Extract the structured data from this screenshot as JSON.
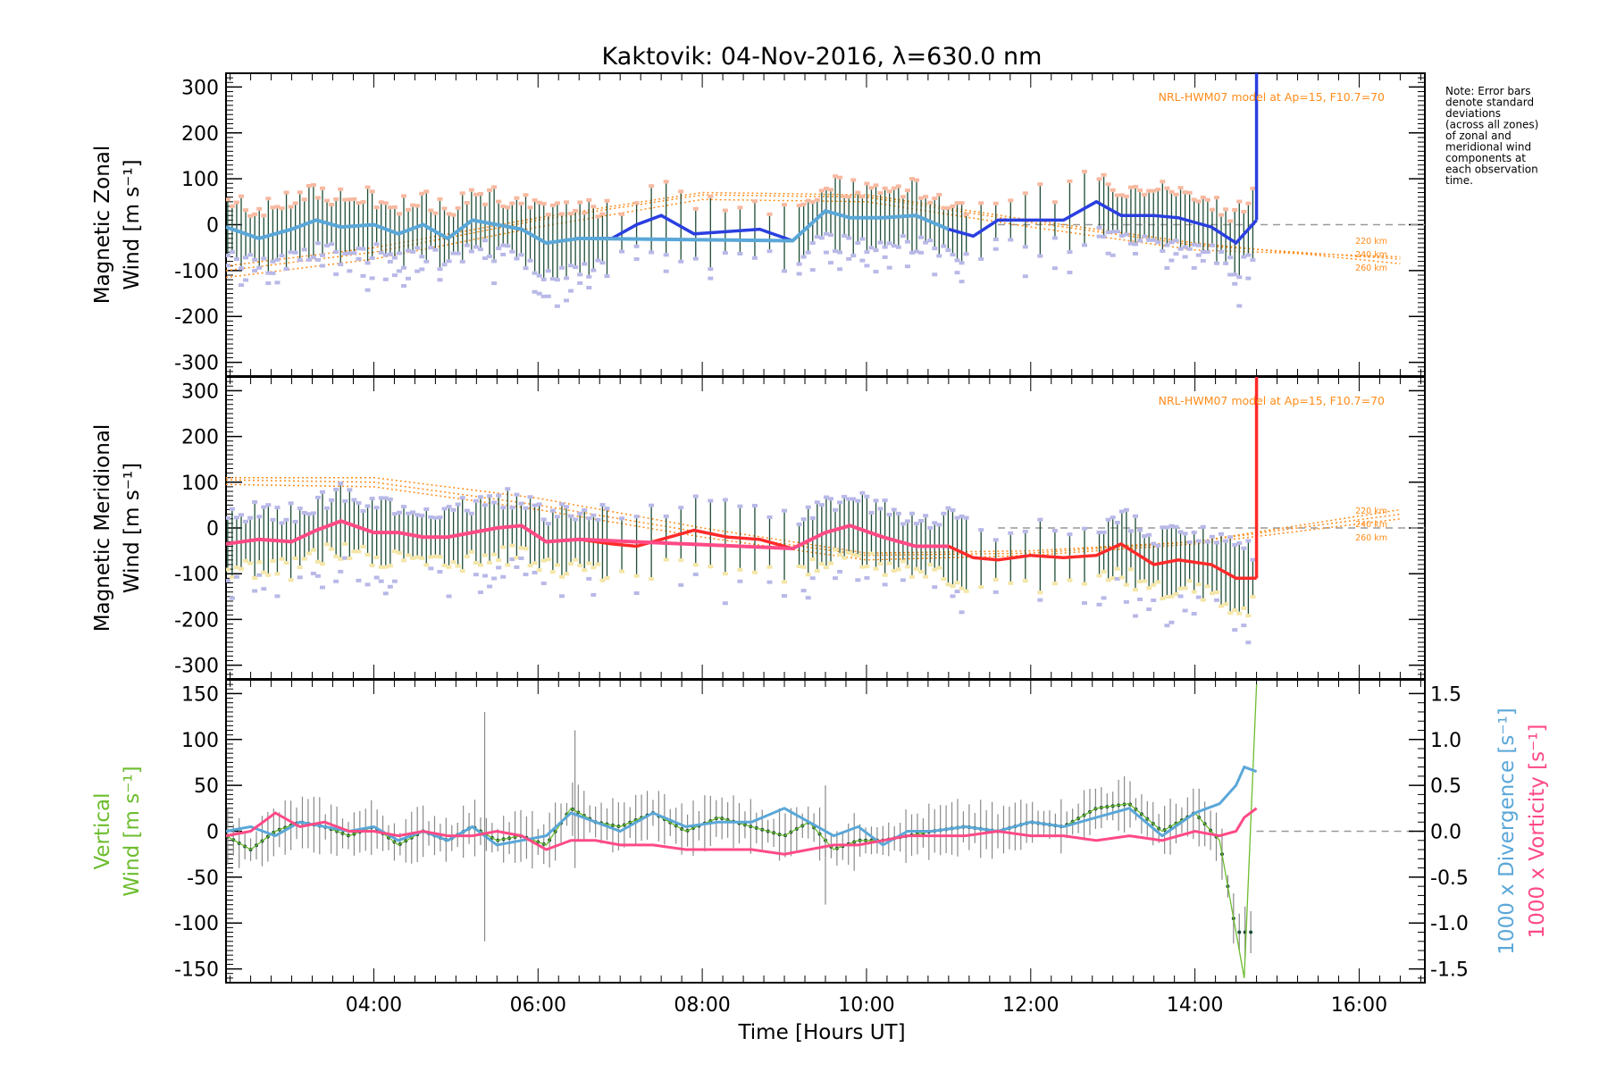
{
  "title": "Kaktovik: 04-Nov-2016, λ=630.0 nm",
  "note": [
    "Note: Error bars",
    "denote standard",
    "deviations",
    "(across all zones)",
    "of zonal and",
    "meridional wind",
    "components at",
    "each observation",
    "time."
  ],
  "model_label": "NRL-HWM07 model at Ap=15, F10.7=70",
  "altitude_labels": [
    "220 km",
    "240 km",
    "260 km"
  ],
  "xlabel": "Time [Hours UT]",
  "xticks": [
    "04:00",
    "06:00",
    "08:00",
    "10:00",
    "12:00",
    "14:00",
    "16:00"
  ],
  "colors": {
    "zonal": "#2a3fe0",
    "zonal_light": "#5aa7d8",
    "meridional": "#ff2a2a",
    "meridional_light": "#ff4a86",
    "vertical": "#6cbd2e",
    "divergence": "#5aa7d8",
    "vorticity": "#ff4a86",
    "model": "#ff8c1a",
    "errorbar": "#1e4d35"
  },
  "chart_data": [
    {
      "type": "line",
      "name": "zonal",
      "ylabel_line1": "Magnetic Zonal",
      "ylabel_line2": "Wind [m s⁻¹]",
      "ylim": [
        -330,
        330
      ],
      "yticks": [
        300,
        200,
        100,
        0,
        -100,
        -200,
        -300
      ],
      "xlim": [
        2.2,
        16.8
      ],
      "x": [
        2.2,
        2.6,
        3.0,
        3.3,
        3.6,
        4.0,
        4.3,
        4.6,
        4.9,
        5.2,
        5.5,
        5.8,
        6.1,
        6.5,
        6.9,
        7.2,
        7.5,
        7.9,
        8.3,
        8.7,
        9.1,
        9.5,
        9.8,
        10.2,
        10.6,
        11.0,
        11.3,
        11.6,
        12.0,
        12.4,
        12.8,
        13.1,
        13.5,
        13.8,
        14.2,
        14.5,
        14.75
      ],
      "y": [
        -5,
        -30,
        -10,
        10,
        -5,
        0,
        -20,
        0,
        -30,
        10,
        0,
        -10,
        -40,
        -30,
        -30,
        0,
        20,
        -20,
        -15,
        -10,
        -35,
        30,
        15,
        15,
        20,
        -10,
        -25,
        10,
        10,
        10,
        50,
        20,
        20,
        15,
        -5,
        -40,
        10
      ],
      "model": [
        {
          "label": "220 km",
          "x": [
            2.2,
            4,
            6,
            8,
            10,
            12,
            14,
            16.5
          ],
          "y": [
            -115,
            -75,
            -5,
            55,
            50,
            -5,
            -55,
            -70
          ]
        },
        {
          "label": "240 km",
          "x": [
            2.2,
            4,
            6,
            8,
            10,
            12,
            14,
            16.5
          ],
          "y": [
            -100,
            -60,
            10,
            65,
            60,
            5,
            -45,
            -75
          ]
        },
        {
          "label": "260 km",
          "x": [
            2.2,
            4,
            6,
            8,
            10,
            12,
            14,
            16.5
          ],
          "y": [
            -90,
            -50,
            15,
            70,
            65,
            10,
            -40,
            -85
          ]
        }
      ]
    },
    {
      "type": "line",
      "name": "meridional",
      "ylabel_line1": "Magnetic Meridional",
      "ylabel_line2": "Wind [m s⁻¹]",
      "ylim": [
        -330,
        330
      ],
      "yticks": [
        300,
        200,
        100,
        0,
        -100,
        -200,
        -300
      ],
      "xlim": [
        2.2,
        16.8
      ],
      "x": [
        2.2,
        2.6,
        3.0,
        3.3,
        3.6,
        4.0,
        4.3,
        4.6,
        4.9,
        5.2,
        5.5,
        5.8,
        6.1,
        6.5,
        6.9,
        7.2,
        7.5,
        7.9,
        8.3,
        8.7,
        9.1,
        9.5,
        9.8,
        10.2,
        10.6,
        11.0,
        11.3,
        11.6,
        12.0,
        12.4,
        12.8,
        13.1,
        13.5,
        13.8,
        14.2,
        14.5,
        14.75
      ],
      "y": [
        -35,
        -25,
        -30,
        -5,
        15,
        -10,
        -10,
        -20,
        -20,
        -10,
        0,
        5,
        -30,
        -25,
        -35,
        -40,
        -25,
        -5,
        -20,
        -25,
        -45,
        -10,
        5,
        -20,
        -40,
        -40,
        -65,
        -70,
        -60,
        -65,
        -60,
        -35,
        -80,
        -70,
        -80,
        -110,
        -110
      ],
      "model": [
        {
          "label": "220 km",
          "x": [
            2.2,
            4,
            6,
            8,
            10,
            12,
            14,
            16.5
          ],
          "y": [
            110,
            110,
            65,
            0,
            -55,
            -50,
            -30,
            40
          ]
        },
        {
          "label": "240 km",
          "x": [
            2.2,
            4,
            6,
            8,
            10,
            12,
            14,
            16.5
          ],
          "y": [
            105,
            100,
            50,
            -10,
            -60,
            -55,
            -30,
            30
          ]
        },
        {
          "label": "260 km",
          "x": [
            2.2,
            4,
            6,
            8,
            10,
            12,
            14,
            16.5
          ],
          "y": [
            95,
            90,
            40,
            -20,
            -70,
            -60,
            -35,
            20
          ]
        }
      ]
    },
    {
      "type": "line",
      "name": "vertical",
      "ylabel_line1": "Vertical",
      "ylabel_line2": "Wind [m s⁻¹]",
      "ylim": [
        -165,
        165
      ],
      "yticks": [
        150,
        100,
        50,
        0,
        -50,
        -100,
        -150
      ],
      "xlim": [
        2.2,
        16.8
      ],
      "x": [
        2.2,
        2.5,
        2.8,
        3.1,
        3.4,
        3.7,
        4.0,
        4.3,
        4.6,
        4.9,
        5.2,
        5.5,
        5.8,
        6.1,
        6.4,
        6.7,
        7.0,
        7.4,
        7.8,
        8.2,
        8.6,
        9.0,
        9.3,
        9.6,
        9.9,
        10.2,
        10.5,
        10.8,
        11.2,
        11.6,
        12.0,
        12.4,
        12.8,
        13.2,
        13.6,
        14.0,
        14.3,
        14.6,
        14.75
      ],
      "y": [
        -5,
        -20,
        0,
        10,
        5,
        -5,
        5,
        -15,
        0,
        -10,
        5,
        -10,
        -5,
        -15,
        25,
        10,
        5,
        20,
        0,
        15,
        5,
        -5,
        10,
        -20,
        -10,
        -10,
        -5,
        0,
        5,
        0,
        10,
        5,
        25,
        30,
        0,
        20,
        -10,
        -160,
        160
      ],
      "y2label_line1": "1000 x Divergence [s⁻¹]",
      "y2label_line2": "1000 x Vorticity [s⁻¹]",
      "y2lim": [
        -1.65,
        1.65
      ],
      "y2ticks": [
        "1.5",
        "1.0",
        "0.5",
        "0.0",
        "-0.5",
        "-1.0",
        "-1.5"
      ],
      "y2tick_values": [
        1.5,
        1.0,
        0.5,
        0.0,
        -0.5,
        -1.0,
        -1.5
      ],
      "divergence": {
        "x": [
          2.2,
          2.5,
          2.8,
          3.1,
          3.4,
          3.7,
          4.0,
          4.3,
          4.6,
          4.9,
          5.2,
          5.5,
          5.8,
          6.1,
          6.4,
          6.7,
          7.0,
          7.4,
          7.8,
          8.2,
          8.6,
          9.0,
          9.3,
          9.6,
          9.9,
          10.2,
          10.5,
          10.8,
          11.2,
          11.6,
          12.0,
          12.4,
          12.8,
          13.2,
          13.6,
          14.0,
          14.3,
          14.5,
          14.6,
          14.75
        ],
        "y": [
          0.0,
          0.05,
          -0.05,
          0.1,
          0.05,
          0.0,
          0.05,
          -0.1,
          0.0,
          -0.1,
          0.05,
          -0.15,
          -0.1,
          -0.05,
          0.2,
          0.1,
          0.0,
          0.2,
          0.05,
          0.1,
          0.1,
          0.25,
          0.1,
          -0.05,
          0.05,
          -0.15,
          0.0,
          0.0,
          0.05,
          0.0,
          0.1,
          0.05,
          0.15,
          0.25,
          -0.05,
          0.2,
          0.3,
          0.5,
          0.7,
          0.65
        ]
      },
      "vorticity": {
        "x": [
          2.2,
          2.5,
          2.8,
          3.1,
          3.4,
          3.7,
          4.0,
          4.3,
          4.6,
          4.9,
          5.2,
          5.5,
          5.8,
          6.1,
          6.4,
          6.7,
          7.0,
          7.4,
          7.8,
          8.2,
          8.6,
          9.0,
          9.3,
          9.6,
          9.9,
          10.2,
          10.5,
          10.8,
          11.2,
          11.6,
          12.0,
          12.4,
          12.8,
          13.2,
          13.6,
          14.0,
          14.3,
          14.5,
          14.6,
          14.75
        ],
        "y": [
          -0.05,
          0.0,
          0.2,
          0.05,
          0.1,
          0.0,
          0.0,
          -0.05,
          0.0,
          -0.05,
          -0.05,
          0.0,
          -0.05,
          -0.2,
          -0.1,
          -0.1,
          -0.15,
          -0.15,
          -0.2,
          -0.2,
          -0.2,
          -0.25,
          -0.2,
          -0.15,
          -0.15,
          -0.1,
          -0.05,
          -0.05,
          -0.05,
          0.0,
          -0.05,
          -0.05,
          -0.1,
          -0.05,
          -0.1,
          0.0,
          -0.05,
          0.0,
          0.15,
          0.25
        ]
      }
    }
  ]
}
